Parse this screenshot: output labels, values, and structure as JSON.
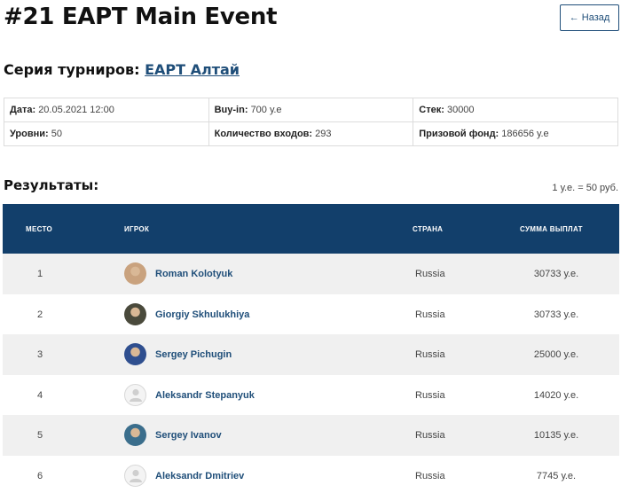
{
  "page": {
    "title": "#21 EAPT Main Event",
    "back_label": "← Назад"
  },
  "series": {
    "label": "Серия турниров:",
    "link": "EAPT Алтай"
  },
  "info": {
    "date_label": "Дата:",
    "date_value": "20.05.2021 12:00",
    "buyin_label": "Buy-in:",
    "buyin_value": "700 у.е",
    "stack_label": "Стек:",
    "stack_value": "30000",
    "levels_label": "Уровни:",
    "levels_value": "50",
    "entries_label": "Количество входов:",
    "entries_value": "293",
    "prize_label": "Призовой фонд:",
    "prize_value": "186656 у.е"
  },
  "results": {
    "title": "Результаты:",
    "rate_note": "1 у.е. = 50 руб.",
    "columns": {
      "place": "МЕСТО",
      "player": "ИГРОК",
      "country": "СТРАНА",
      "payout": "СУММА ВЫПЛАТ"
    },
    "rows": [
      {
        "place": "1",
        "player": "Roman Kolotyuk",
        "country": "Russia",
        "payout": "30733 у.е.",
        "avatar": "photo-avatar",
        "avatar_color": "#c9a27e"
      },
      {
        "place": "2",
        "player": "Giorgiy Skhulukhiya",
        "country": "Russia",
        "payout": "30733 у.е.",
        "avatar": "photo-avatar",
        "avatar_color": "#4a4a3c"
      },
      {
        "place": "3",
        "player": "Sergey Pichugin",
        "country": "Russia",
        "payout": "25000 у.е.",
        "avatar": "photo-avatar",
        "avatar_color": "#2f4f8f"
      },
      {
        "place": "4",
        "player": "Aleksandr Stepanyuk",
        "country": "Russia",
        "payout": "14020 у.е.",
        "avatar": "default-user-icon",
        "avatar_color": "#e4e4e4"
      },
      {
        "place": "5",
        "player": "Sergey Ivanov",
        "country": "Russia",
        "payout": "10135 у.е.",
        "avatar": "photo-avatar",
        "avatar_color": "#3b6e8c"
      },
      {
        "place": "6",
        "player": "Aleksandr Dmitriev",
        "country": "Russia",
        "payout": "7745 у.е.",
        "avatar": "default-user-icon",
        "avatar_color": "#e4e4e4"
      }
    ]
  },
  "colors": {
    "header_bg": "#123f6b",
    "link": "#1f4e79",
    "row_alt": "#f0f0f0"
  }
}
